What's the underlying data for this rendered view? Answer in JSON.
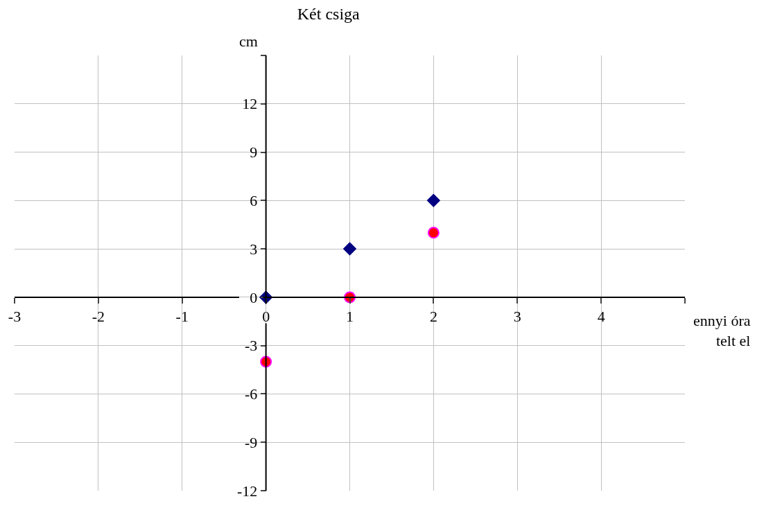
{
  "chart_data": {
    "type": "scatter",
    "title": "Két csiga",
    "xlabel": "ennyi óra\ntelt el",
    "ylabel": "cm",
    "xlim": [
      -3,
      5
    ],
    "xticks": [
      -3,
      -2,
      -1,
      0,
      1,
      2,
      3,
      4,
      {
        "value": 5,
        "label": null
      }
    ],
    "ylim": [
      -12,
      15
    ],
    "yticks": [
      -12,
      -9,
      -6,
      -3,
      0,
      3,
      6,
      9,
      12,
      {
        "value": 15,
        "label": null
      }
    ],
    "grid": true,
    "series": [
      {
        "color": "#000080",
        "marker": "diamond",
        "x": [
          0,
          1,
          2
        ],
        "values": [
          0,
          3,
          6
        ]
      },
      {
        "color": "#ff0000",
        "marker": "circle",
        "x": [
          0,
          1,
          2
        ],
        "values": [
          -4,
          0,
          4
        ]
      }
    ]
  }
}
